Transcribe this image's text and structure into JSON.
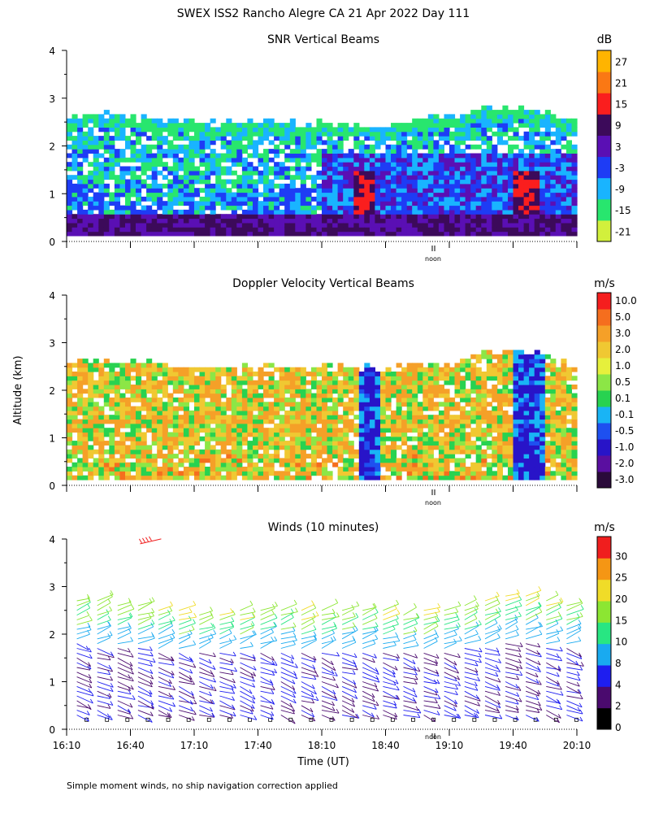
{
  "figure_title": "SWEX ISS2 Rancho Alegre CA  21 Apr 2022 Day 111",
  "ylabel": "Altitude (km)",
  "xlabel": "Time (UT)",
  "noon_label": "noon",
  "footnote": "Simple moment winds, no ship navigation correction applied",
  "chart_data": [
    {
      "type": "heatmap",
      "title": "SNR Vertical Beams",
      "units": "dB",
      "x_range_hours": [
        16.1667,
        20.1667
      ],
      "ylim": [
        0,
        4
      ],
      "yticks": [
        "0",
        "1",
        "2",
        "3",
        "4"
      ],
      "colorbar_labels": [
        "-21",
        "-15",
        "-9",
        "-3",
        "3",
        "9",
        "15",
        "21",
        "27"
      ],
      "colorbar_colors": [
        "#d2f03c",
        "#28e66e",
        "#19b4ff",
        "#1e3cf5",
        "#5a0fb4",
        "#3c0a5a",
        "#fa1e1e",
        "#fa7814",
        "#ffb400"
      ],
      "echo_top_km": [
        2.6,
        2.65,
        2.6,
        2.55,
        2.5,
        2.5,
        2.45,
        2.45,
        2.45,
        2.45,
        2.45,
        2.4,
        2.45,
        2.4,
        2.35,
        2.45,
        2.5,
        2.55,
        2.6,
        2.75,
        2.8,
        2.75,
        2.6,
        2.5
      ],
      "strong_echo_columns_hours": [
        18.5,
        19.75
      ]
    },
    {
      "type": "heatmap",
      "title": "Doppler Velocity Vertical Beams",
      "units": "m/s",
      "x_range_hours": [
        16.1667,
        20.1667
      ],
      "ylim": [
        0,
        4
      ],
      "yticks": [
        "0",
        "1",
        "2",
        "3",
        "4"
      ],
      "colorbar_labels": [
        "10.0",
        "5.0",
        "3.0",
        "2.0",
        "1.0",
        "0.5",
        "0.1",
        "-0.1",
        "-0.5",
        "-1.0",
        "-2.0",
        "-3.0"
      ],
      "colorbar_colors": [
        "#2a0a3a",
        "#5a0fa0",
        "#2814c8",
        "#1e50f0",
        "#19b4f5",
        "#28d250",
        "#8ce646",
        "#e6f03c",
        "#f0c832",
        "#f5a028",
        "#f56e1e",
        "#f51e1e"
      ],
      "echo_top_km": [
        2.6,
        2.6,
        2.55,
        2.55,
        2.5,
        2.5,
        2.45,
        2.45,
        2.45,
        2.45,
        2.45,
        2.45,
        2.5,
        2.45,
        2.4,
        2.45,
        2.5,
        2.55,
        2.65,
        2.75,
        2.8,
        2.75,
        2.6,
        2.5
      ],
      "updraft_columns_hours": [
        18.5,
        19.75
      ]
    },
    {
      "type": "wind-barbs",
      "title": "Winds (10 minutes)",
      "units": "m/s",
      "x_range_hours": [
        16.1667,
        20.1667
      ],
      "interval_minutes": 10,
      "ylim": [
        0,
        4
      ],
      "yticks": [
        "0",
        "1",
        "2",
        "3",
        "4"
      ],
      "xticks": [
        "16:10",
        "16:40",
        "17:10",
        "17:40",
        "18:10",
        "18:40",
        "19:10",
        "19:40",
        "20:10"
      ],
      "colorbar_labels": [
        "0",
        "2",
        "4",
        "8",
        "10",
        "15",
        "20",
        "25",
        "30"
      ],
      "colorbar_colors": [
        "#000000",
        "#4a0a6e",
        "#1e1ef0",
        "#19aaf0",
        "#28e682",
        "#8ce632",
        "#f0dc28",
        "#f59614",
        "#f01e1e"
      ],
      "profile_top_km": [
        2.8,
        2.75,
        2.7,
        2.65,
        2.6,
        2.55,
        2.5,
        2.5,
        2.55,
        2.6,
        2.6,
        2.55,
        2.55,
        2.6,
        2.6,
        2.55,
        2.5,
        2.55,
        2.6,
        2.65,
        2.75,
        2.9,
        2.85,
        2.75,
        2.7
      ]
    }
  ]
}
